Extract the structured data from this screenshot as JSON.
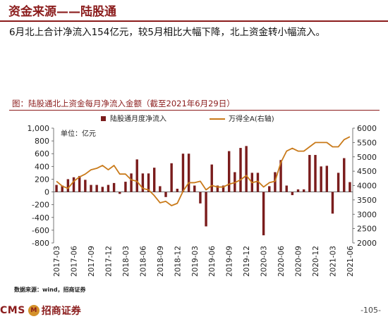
{
  "header": {
    "title": "资金来源——陆股通",
    "summary": "6月北上合计净流入154亿元，较5月相比大幅下降，北上资金转小幅流入。"
  },
  "chart_data": {
    "type": "bar+line",
    "title": "图：陆股通北上资金每月净流入金额（截至2021年6月29日）",
    "unit_label": "单位：亿元",
    "legend": [
      {
        "name": "陆股通月度净流入",
        "kind": "bar"
      },
      {
        "name": "万得全A(右轴)",
        "kind": "line"
      }
    ],
    "legend_position": "top",
    "y_left": {
      "min": -800,
      "max": 1000,
      "ticks": [
        -800,
        -600,
        -400,
        -200,
        0,
        200,
        400,
        600,
        800,
        1000
      ],
      "tick_labels": [
        "-800",
        "-600",
        "-400",
        "-200",
        "0",
        "200",
        "400",
        "600",
        "800",
        "1,000"
      ]
    },
    "y_right": {
      "min": 2000,
      "max": 6000,
      "ticks": [
        2000,
        2500,
        3000,
        3500,
        4000,
        4500,
        5000,
        5500,
        6000
      ],
      "tick_labels": [
        "2000",
        "2500",
        "3000",
        "3500",
        "4000",
        "4500",
        "5000",
        "5500",
        "6000"
      ]
    },
    "x_tick_labels": [
      "2017-03",
      "2017-06",
      "2017-09",
      "2017-12",
      "2018-03",
      "2018-06",
      "2018-09",
      "2018-12",
      "2019-03",
      "2019-06",
      "2019-09",
      "2019-12",
      "2020-03",
      "2020-06",
      "2020-09",
      "2020-12",
      "2021-03",
      "2021-06"
    ],
    "months": [
      "2017-03",
      "2017-04",
      "2017-05",
      "2017-06",
      "2017-07",
      "2017-08",
      "2017-09",
      "2017-10",
      "2017-11",
      "2017-12",
      "2018-01",
      "2018-02",
      "2018-03",
      "2018-04",
      "2018-05",
      "2018-06",
      "2018-07",
      "2018-08",
      "2018-09",
      "2018-10",
      "2018-11",
      "2018-12",
      "2019-01",
      "2019-02",
      "2019-03",
      "2019-04",
      "2019-05",
      "2019-06",
      "2019-07",
      "2019-08",
      "2019-09",
      "2019-10",
      "2019-11",
      "2019-12",
      "2020-01",
      "2020-02",
      "2020-03",
      "2020-04",
      "2020-05",
      "2020-06",
      "2020-07",
      "2020-08",
      "2020-09",
      "2020-10",
      "2020-11",
      "2020-12",
      "2021-01",
      "2021-02",
      "2021-03",
      "2021-04",
      "2021-05",
      "2021-06"
    ],
    "bar_values": [
      110,
      100,
      200,
      230,
      250,
      190,
      110,
      110,
      80,
      110,
      140,
      -30,
      160,
      290,
      510,
      290,
      290,
      380,
      90,
      -80,
      450,
      50,
      600,
      600,
      100,
      -180,
      -540,
      430,
      100,
      100,
      640,
      310,
      690,
      720,
      300,
      300,
      -680,
      90,
      310,
      500,
      100,
      -50,
      40,
      40,
      580,
      580,
      400,
      410,
      -340,
      300,
      530,
      154
    ],
    "line_values": [
      4150,
      3980,
      3900,
      4150,
      4300,
      4400,
      4550,
      4600,
      4700,
      4550,
      4700,
      4400,
      4400,
      4200,
      4150,
      3900,
      3850,
      3650,
      3400,
      3450,
      3300,
      3380,
      3800,
      4100,
      4100,
      4150,
      3850,
      4000,
      3950,
      3950,
      4050,
      4100,
      4200,
      4350,
      4100,
      4150,
      3950,
      4100,
      4150,
      4800,
      5200,
      5300,
      5200,
      5200,
      5350,
      5500,
      5500,
      5500,
      5350,
      5350,
      5600,
      5700
    ],
    "bar_color": "#7a1c1c",
    "line_color": "#c97a1a",
    "grid": false
  },
  "footer": {
    "source": "数据来源：wind，招商证券",
    "logo_text": "CMS",
    "logo_mark": "M",
    "logo_cn": "招商证券",
    "page_number": "-105-"
  }
}
